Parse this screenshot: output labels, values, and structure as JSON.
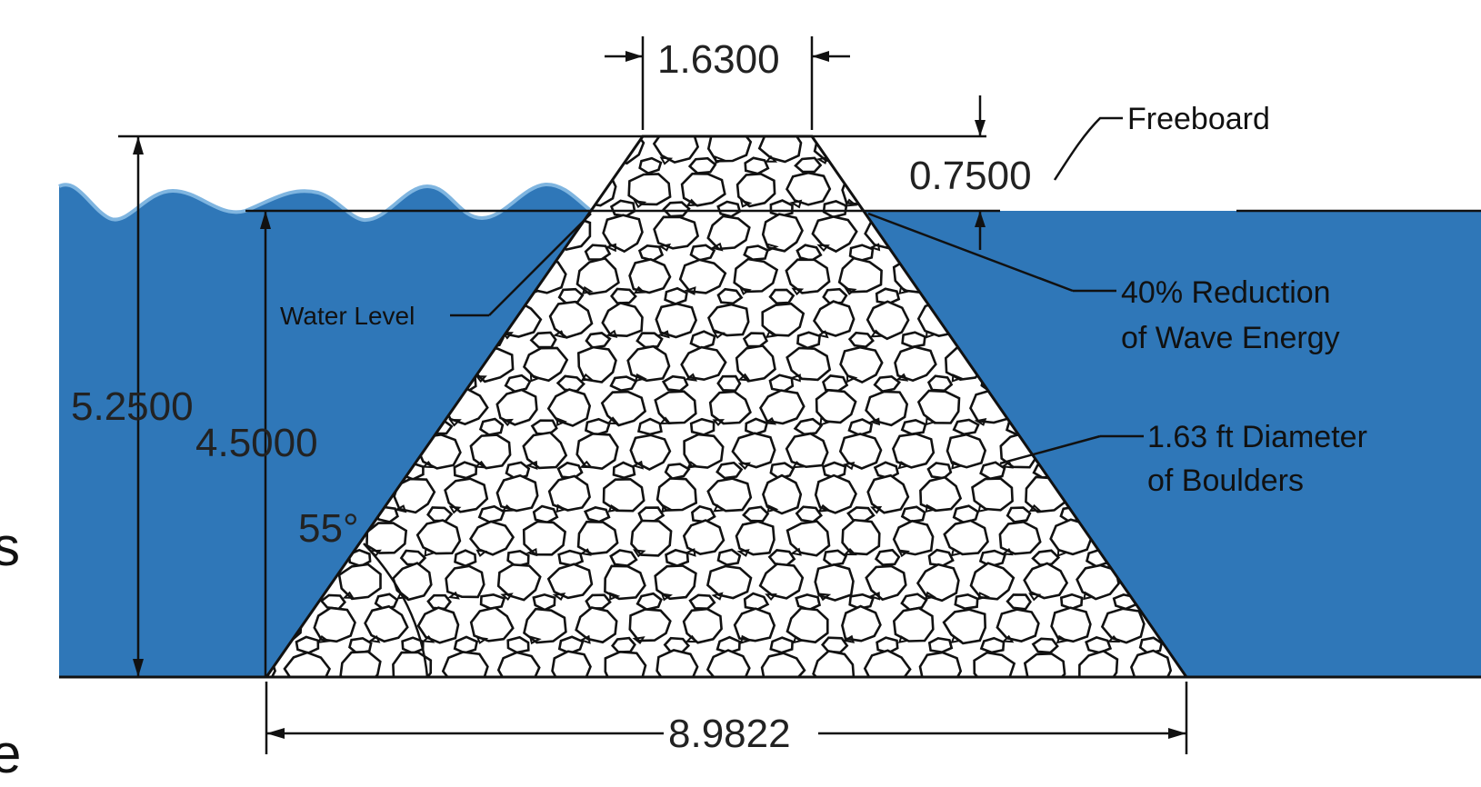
{
  "colors": {
    "water": "#2F77B8",
    "water_light": "#7FB5E0",
    "ink": "#111111"
  },
  "dimensions": {
    "crest_width": "1.6300",
    "freeboard": "0.7500",
    "total_height": "5.2500",
    "water_depth": "4.5000",
    "base_width": "8.9822",
    "slope_angle": "55°"
  },
  "labels": {
    "freeboard": "Freeboard",
    "water_level": "Water Level",
    "energy_line1": "40% Reduction",
    "energy_line2": "of Wave Energy",
    "boulder_line1": "1.63 ft Diameter",
    "boulder_line2": "of Boulders"
  },
  "edge_text": {
    "left_top": "s",
    "left_bottom": "e"
  }
}
